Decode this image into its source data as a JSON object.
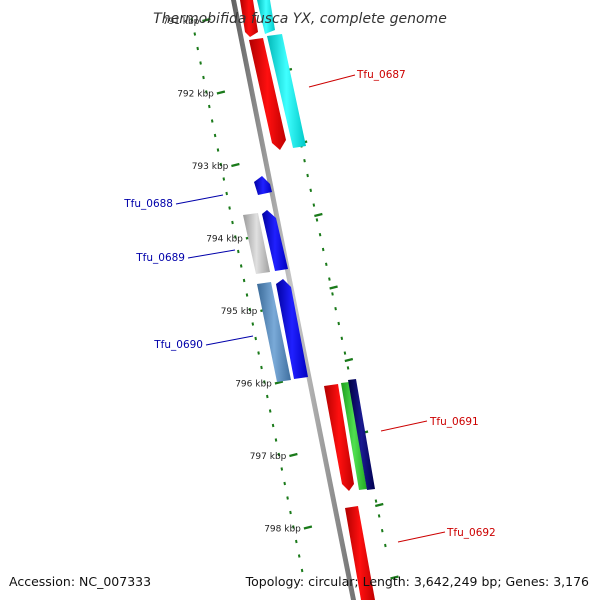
{
  "title": "Thermobifida fusca YX, complete genome",
  "footer": {
    "accession": "Accession: NC_007333",
    "summary": "Topology: circular; Length: 3,642,249 bp; Genes: 3,176"
  },
  "scale": {
    "ticks": [
      {
        "label": "791 kbp",
        "kbp": 791
      },
      {
        "label": "792 kbp",
        "kbp": 792
      },
      {
        "label": "793 kbp",
        "kbp": 793
      },
      {
        "label": "794 kbp",
        "kbp": 794
      },
      {
        "label": "795 kbp",
        "kbp": 795
      },
      {
        "label": "796 kbp",
        "kbp": 796
      },
      {
        "label": "797 kbp",
        "kbp": 797
      },
      {
        "label": "798 kbp",
        "kbp": 798
      }
    ]
  },
  "genes": [
    {
      "label": "Tfu_0687",
      "color": "#cc0000"
    },
    {
      "label": "Tfu_0688",
      "color": "#0000aa"
    },
    {
      "label": "Tfu_0689",
      "color": "#0000aa"
    },
    {
      "label": "Tfu_0690",
      "color": "#0000aa"
    },
    {
      "label": "Tfu_0691",
      "color": "#cc0000"
    },
    {
      "label": "Tfu_0692",
      "color": "#cc0000"
    }
  ],
  "colors": {
    "backbone": "#888888",
    "tick": "#1a7a1a",
    "forward": "#ee0000",
    "reverse": "#0000ee"
  }
}
